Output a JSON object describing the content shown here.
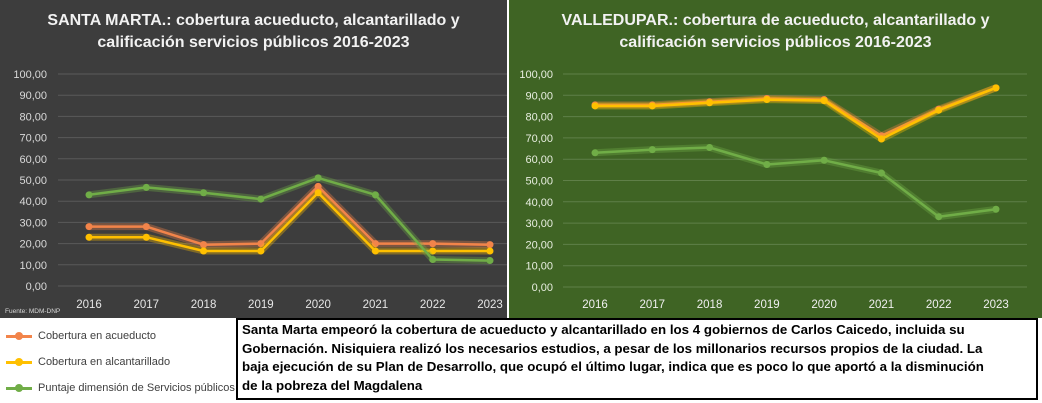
{
  "chart_data": [
    {
      "type": "line",
      "title_lines": [
        "SANTA MARTA.: cobertura acueducto, alcantarillado y",
        "calificación servicios públicos 2016-2023"
      ],
      "source_note": "Fuente: MDM-DNP",
      "categories": [
        "2016",
        "2017",
        "2018",
        "2019",
        "2020",
        "2021",
        "2022",
        "2023"
      ],
      "y_ticks": [
        "100,00",
        "90,00",
        "80,00",
        "70,00",
        "60,00",
        "50,00",
        "40,00",
        "30,00",
        "20,00",
        "10,00",
        "0,00"
      ],
      "ylim": [
        0,
        100
      ],
      "grid": true,
      "background": "#3d3d3d",
      "series": [
        {
          "name": "Cobertura en acueducto",
          "color": "#f2844a",
          "values": [
            28,
            28,
            19.5,
            20,
            47,
            20,
            20,
            19.5
          ]
        },
        {
          "name": "Cobertura en alcantarillado",
          "color": "#ffc000",
          "values": [
            23,
            23,
            16.5,
            16.5,
            44,
            16.5,
            16.5,
            16.5
          ]
        },
        {
          "name": "Puntaje dimensión de Servicios públicos",
          "color": "#70ad47",
          "values": [
            43,
            46.5,
            44,
            41,
            51,
            43,
            12.5,
            12
          ]
        }
      ]
    },
    {
      "type": "line",
      "title_lines": [
        "VALLEDUPAR.: cobertura de acueducto, alcantarillado y",
        "calificación servicios públicos 2016-2023"
      ],
      "categories": [
        "2016",
        "2017",
        "2018",
        "2019",
        "2020",
        "2021",
        "2022",
        "2023"
      ],
      "y_ticks": [
        "100,00",
        "90,00",
        "80,00",
        "70,00",
        "60,00",
        "50,00",
        "40,00",
        "30,00",
        "20,00",
        "10,00",
        "0,00"
      ],
      "ylim": [
        0,
        100
      ],
      "grid": true,
      "background": "#3f6424",
      "series": [
        {
          "color": "#f2844a",
          "values": [
            85.5,
            85.5,
            87,
            88.5,
            88,
            71,
            83.5,
            93.5
          ]
        },
        {
          "color": "#ffc000",
          "values": [
            85,
            85,
            86.5,
            88,
            87.5,
            69.5,
            83,
            93.5
          ]
        },
        {
          "color": "#70ad47",
          "values": [
            63,
            64.5,
            65.5,
            57.5,
            59.5,
            53.5,
            33,
            36.5
          ]
        }
      ]
    }
  ],
  "note": {
    "lines": [
      "Santa Marta empeoró la cobertura de acueducto y alcantarillado en los 4 gobiernos de Carlos Caicedo, incluida su",
      "Gobernación. Nisiquiera realizó los necesarios estudios, a pesar de los millonarios recursos propios de la ciudad. La",
      "baja ejecución de su Plan de Desarrollo, que ocupó el último lugar, indica que es poco lo que aportó a la disminución",
      "de la pobreza del Magdalena"
    ]
  }
}
